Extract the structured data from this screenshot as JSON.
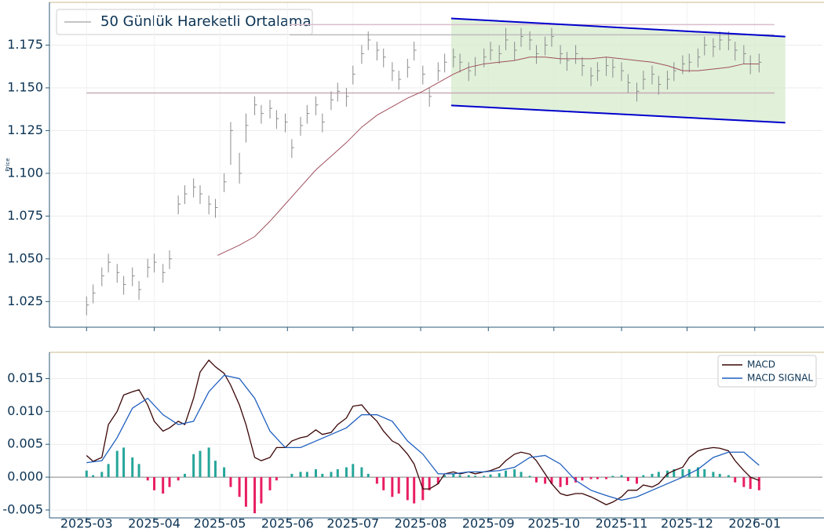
{
  "chart_data": [
    {
      "type": "ohlc",
      "ylabel": "Price",
      "legend": "50 Günlük Hareketli Ortalama",
      "legend_loc": "upper left",
      "xlim": [
        -17,
        337
      ],
      "ylim": [
        1.01,
        1.2
      ],
      "yticks": [
        1.025,
        {
          "value": 1.05,
          "label": "1.050"
        },
        1.075,
        {
          "value": 1.1,
          "label": "1.100"
        },
        1.125,
        {
          "value": 1.15,
          "label": "1.150"
        },
        1.175
      ],
      "grid": true,
      "bar_color": "#8c8c8c",
      "x": [
        0,
        3,
        7,
        10,
        14,
        17,
        21,
        24,
        28,
        31,
        35,
        38,
        42,
        45,
        49,
        52,
        56,
        59,
        63,
        66,
        70,
        73,
        77,
        80,
        84,
        87,
        91,
        94,
        98,
        101,
        105,
        108,
        112,
        115,
        119,
        122,
        126,
        129,
        133,
        136,
        140,
        143,
        147,
        150,
        154,
        157,
        161,
        164,
        168,
        171,
        175,
        178,
        182,
        185,
        189,
        192,
        196,
        199,
        203,
        206,
        210,
        213,
        217,
        220,
        224,
        227,
        231,
        234,
        238,
        241,
        245,
        248,
        252,
        255,
        259,
        262,
        266,
        269,
        273,
        276,
        280,
        283,
        287,
        290,
        294,
        297,
        301,
        304,
        308
      ],
      "high": [
        1.028,
        1.035,
        1.045,
        1.053,
        1.047,
        1.04,
        1.045,
        1.037,
        1.05,
        1.053,
        1.047,
        1.055,
        1.087,
        1.093,
        1.097,
        1.093,
        1.087,
        1.085,
        1.1,
        1.13,
        1.112,
        1.135,
        1.145,
        1.14,
        1.143,
        1.137,
        1.135,
        1.12,
        1.133,
        1.14,
        1.145,
        1.135,
        1.148,
        1.153,
        1.15,
        1.163,
        1.175,
        1.183,
        1.177,
        1.173,
        1.165,
        1.16,
        1.167,
        1.177,
        1.163,
        1.15,
        1.165,
        1.17,
        1.173,
        1.17,
        1.165,
        1.168,
        1.173,
        1.177,
        1.175,
        1.185,
        1.177,
        1.185,
        1.183,
        1.175,
        1.18,
        1.185,
        1.175,
        1.171,
        1.175,
        1.168,
        1.162,
        1.165,
        1.168,
        1.167,
        1.165,
        1.158,
        1.153,
        1.16,
        1.163,
        1.157,
        1.16,
        1.165,
        1.169,
        1.17,
        1.173,
        1.18,
        1.179,
        1.183,
        1.183,
        1.177,
        1.175,
        1.169,
        1.17
      ],
      "low": [
        1.017,
        1.024,
        1.034,
        1.042,
        1.036,
        1.029,
        1.034,
        1.026,
        1.039,
        1.042,
        1.036,
        1.044,
        1.076,
        1.082,
        1.086,
        1.082,
        1.076,
        1.074,
        1.089,
        1.105,
        1.094,
        1.118,
        1.134,
        1.129,
        1.132,
        1.126,
        1.124,
        1.109,
        1.122,
        1.129,
        1.134,
        1.124,
        1.137,
        1.142,
        1.139,
        1.152,
        1.164,
        1.172,
        1.166,
        1.162,
        1.154,
        1.149,
        1.156,
        1.166,
        1.152,
        1.139,
        1.154,
        1.159,
        1.162,
        1.159,
        1.154,
        1.157,
        1.162,
        1.166,
        1.164,
        1.172,
        1.166,
        1.174,
        1.172,
        1.164,
        1.169,
        1.174,
        1.164,
        1.16,
        1.164,
        1.157,
        1.151,
        1.154,
        1.157,
        1.156,
        1.154,
        1.147,
        1.142,
        1.149,
        1.152,
        1.146,
        1.149,
        1.154,
        1.158,
        1.159,
        1.162,
        1.169,
        1.168,
        1.172,
        1.172,
        1.166,
        1.164,
        1.158,
        1.159
      ],
      "values": [
        1.023,
        1.03,
        1.04,
        1.048,
        1.042,
        1.035,
        1.04,
        1.032,
        1.045,
        1.048,
        1.042,
        1.05,
        1.082,
        1.088,
        1.092,
        1.088,
        1.082,
        1.08,
        1.095,
        1.125,
        1.1,
        1.128,
        1.14,
        1.135,
        1.138,
        1.132,
        1.13,
        1.115,
        1.128,
        1.135,
        1.14,
        1.13,
        1.143,
        1.148,
        1.145,
        1.158,
        1.17,
        1.178,
        1.172,
        1.168,
        1.16,
        1.155,
        1.162,
        1.172,
        1.158,
        1.145,
        1.16,
        1.165,
        1.168,
        1.165,
        1.16,
        1.163,
        1.168,
        1.172,
        1.17,
        1.178,
        1.172,
        1.18,
        1.178,
        1.17,
        1.175,
        1.18,
        1.17,
        1.166,
        1.17,
        1.163,
        1.157,
        1.16,
        1.163,
        1.162,
        1.16,
        1.153,
        1.148,
        1.155,
        1.158,
        1.152,
        1.155,
        1.16,
        1.164,
        1.165,
        1.168,
        1.175,
        1.174,
        1.178,
        1.178,
        1.172,
        1.17,
        1.164,
        1.165
      ],
      "ma": {
        "color": "#a0505e",
        "x": [
          60,
          70,
          77,
          84,
          91,
          98,
          105,
          112,
          119,
          126,
          133,
          140,
          147,
          154,
          161,
          168,
          175,
          182,
          189,
          196,
          203,
          210,
          217,
          224,
          231,
          238,
          245,
          252,
          259,
          266,
          273,
          280,
          287,
          294,
          301,
          308
        ],
        "values": [
          1.052,
          1.058,
          1.063,
          1.072,
          1.082,
          1.092,
          1.102,
          1.11,
          1.118,
          1.127,
          1.134,
          1.139,
          1.144,
          1.148,
          1.153,
          1.158,
          1.162,
          1.164,
          1.165,
          1.166,
          1.168,
          1.168,
          1.167,
          1.167,
          1.167,
          1.168,
          1.167,
          1.166,
          1.165,
          1.163,
          1.16,
          1.16,
          1.161,
          1.162,
          1.164,
          1.164
        ]
      },
      "hlines": [
        {
          "y": 1.147,
          "x": [
            0,
            315
          ],
          "color": "#c9aab3"
        },
        {
          "y": 1.181,
          "x": [
            93,
            315
          ],
          "color": "#bdbdbd"
        },
        {
          "y": 1.187,
          "x": [
            93,
            315
          ],
          "color": "#d9bccb"
        }
      ],
      "channel": {
        "x": [
          167,
          320
        ],
        "upper": [
          1.1906,
          1.18
        ],
        "lower": [
          1.1397,
          1.1296
        ],
        "color": "#0000cc",
        "fill": "#d6ebcc"
      }
    },
    {
      "type": "macd",
      "xlim": [
        -17,
        337
      ],
      "ylim": [
        -0.0062,
        0.019
      ],
      "legend_loc": "upper right",
      "yticks": [
        -0.005,
        {
          "value": 0,
          "label": "0.000"
        },
        0.005,
        {
          "value": 0.01,
          "label": "0.010"
        },
        0.015
      ],
      "xticks": [
        {
          "value": 0,
          "label": "2025-03"
        },
        {
          "value": 31,
          "label": "2025-04"
        },
        {
          "value": 61,
          "label": "2025-05"
        },
        {
          "value": 92,
          "label": "2025-06"
        },
        {
          "value": 122,
          "label": "2025-07"
        },
        {
          "value": 153,
          "label": "2025-08"
        },
        {
          "value": 184,
          "label": "2025-09"
        },
        {
          "value": 214,
          "label": "2025-10"
        },
        {
          "value": 245,
          "label": "2025-11"
        },
        {
          "value": 275,
          "label": "2025-12"
        },
        {
          "value": 306,
          "label": "2026-01"
        }
      ],
      "grid": true,
      "x": [
        0,
        3,
        7,
        10,
        14,
        17,
        21,
        24,
        28,
        31,
        35,
        38,
        42,
        45,
        49,
        52,
        56,
        59,
        63,
        66,
        70,
        73,
        77,
        80,
        84,
        87,
        91,
        94,
        98,
        101,
        105,
        108,
        112,
        115,
        119,
        122,
        126,
        129,
        133,
        136,
        140,
        143,
        147,
        150,
        154,
        157,
        161,
        164,
        168,
        171,
        175,
        178,
        182,
        185,
        189,
        192,
        196,
        199,
        203,
        206,
        210,
        213,
        217,
        220,
        224,
        227,
        231,
        234,
        238,
        241,
        245,
        248,
        252,
        255,
        259,
        262,
        266,
        269,
        273,
        276,
        280,
        283,
        287,
        290,
        294,
        297,
        301,
        304,
        308
      ],
      "series": [
        {
          "name": "MACD",
          "color": "#3a0505",
          "x": [
            0,
            3,
            7,
            10,
            14,
            17,
            21,
            24,
            28,
            31,
            35,
            38,
            42,
            45,
            49,
            52,
            56,
            59,
            63,
            66,
            70,
            73,
            77,
            80,
            84,
            87,
            91,
            94,
            98,
            101,
            105,
            108,
            112,
            115,
            119,
            122,
            126,
            129,
            133,
            136,
            140,
            143,
            147,
            150,
            154,
            157,
            161,
            164,
            168,
            171,
            175,
            178,
            182,
            185,
            189,
            192,
            196,
            199,
            203,
            206,
            210,
            213,
            217,
            220,
            224,
            227,
            231,
            234,
            238,
            241,
            245,
            248,
            252,
            255,
            259,
            262,
            266,
            269,
            273,
            276,
            280,
            283,
            287,
            290,
            294,
            297,
            301,
            304,
            308
          ],
          "values": [
            0.0033,
            0.0024,
            0.003,
            0.008,
            0.01,
            0.0125,
            0.013,
            0.0133,
            0.011,
            0.0085,
            0.007,
            0.0075,
            0.0085,
            0.008,
            0.012,
            0.016,
            0.0178,
            0.0168,
            0.0158,
            0.014,
            0.011,
            0.008,
            0.003,
            0.0025,
            0.003,
            0.0045,
            0.0045,
            0.0055,
            0.006,
            0.0062,
            0.0072,
            0.0065,
            0.0068,
            0.008,
            0.009,
            0.0108,
            0.011,
            0.0098,
            0.0085,
            0.007,
            0.0055,
            0.005,
            0.0035,
            0.002,
            -0.0018,
            -0.0018,
            -0.001,
            0.0005,
            0.0008,
            0.0005,
            0.0008,
            0.0005,
            0.0008,
            0.001,
            0.0015,
            0.0025,
            0.0035,
            0.0038,
            0.0035,
            0.0025,
            0.0005,
            -0.001,
            -0.0025,
            -0.0028,
            -0.0025,
            -0.0025,
            -0.003,
            -0.0035,
            -0.0042,
            -0.0038,
            -0.003,
            -0.002,
            -0.002,
            -0.0012,
            -0.0015,
            -0.001,
            0.0005,
            0.001,
            0.0015,
            0.003,
            0.004,
            0.0043,
            0.0045,
            0.0044,
            0.004,
            0.0025,
            0.001,
            0,
            -0.0005
          ]
        },
        {
          "name": "MACD SIGNAL",
          "color": "#1f5fbf",
          "x": [
            0,
            7,
            14,
            21,
            28,
            35,
            42,
            49,
            56,
            63,
            70,
            77,
            84,
            91,
            98,
            105,
            112,
            119,
            126,
            133,
            140,
            147,
            154,
            161,
            168,
            175,
            182,
            189,
            196,
            203,
            210,
            217,
            224,
            231,
            238,
            245,
            252,
            259,
            266,
            273,
            280,
            287,
            294,
            301,
            308
          ],
          "values": [
            0.0022,
            0.0025,
            0.006,
            0.0105,
            0.012,
            0.0095,
            0.008,
            0.0085,
            0.013,
            0.0155,
            0.015,
            0.012,
            0.007,
            0.0045,
            0.0045,
            0.0055,
            0.0065,
            0.0075,
            0.0095,
            0.0095,
            0.0085,
            0.0055,
            0.0035,
            0.0005,
            0.0005,
            0.0008,
            0.0008,
            0.001,
            0.0015,
            0.003,
            0.0033,
            0.002,
            -0.0005,
            -0.002,
            -0.0028,
            -0.0035,
            -0.003,
            -0.002,
            -0.001,
            0,
            0.0012,
            0.003,
            0.0038,
            0.0038,
            0.0018
          ]
        }
      ],
      "histogram": {
        "positive_color": "#26a69a",
        "negative_color": "#e91e63",
        "values": [
          0.001,
          0.0003,
          0.0008,
          0.002,
          0.004,
          0.0045,
          0.003,
          0.002,
          -0.0005,
          -0.002,
          -0.0025,
          -0.0015,
          -0.0005,
          0.0005,
          0.0035,
          0.004,
          0.0045,
          0.0025,
          0.0015,
          -0.0015,
          -0.003,
          -0.0045,
          -0.0055,
          -0.004,
          -0.002,
          -0.0005,
          0,
          0.0005,
          0.0008,
          0.0008,
          0.0012,
          0.0005,
          0.0008,
          0.0012,
          0.0015,
          0.002,
          0.0015,
          0.0005,
          -0.001,
          -0.002,
          -0.003,
          -0.0025,
          -0.0035,
          -0.004,
          -0.0035,
          -0.002,
          -0.001,
          0.0003,
          0.0005,
          0.0003,
          0.0003,
          0.0002,
          0.0002,
          0.0004,
          0.0006,
          0.001,
          0.0012,
          0.0008,
          0.0002,
          -0.0008,
          -0.001,
          -0.001,
          -0.0015,
          -0.0012,
          -0.0008,
          -0.0005,
          -0.0003,
          -0.0003,
          -0.0003,
          0.0002,
          0.0003,
          -0.0006,
          -0.001,
          0.0003,
          0.0005,
          0.0008,
          0.001,
          0.0012,
          0.0012,
          0.0012,
          0.0015,
          0.0012,
          0.0008,
          0.0005,
          0.0003,
          -0.0008,
          -0.0015,
          -0.0018,
          -0.002
        ]
      }
    }
  ]
}
